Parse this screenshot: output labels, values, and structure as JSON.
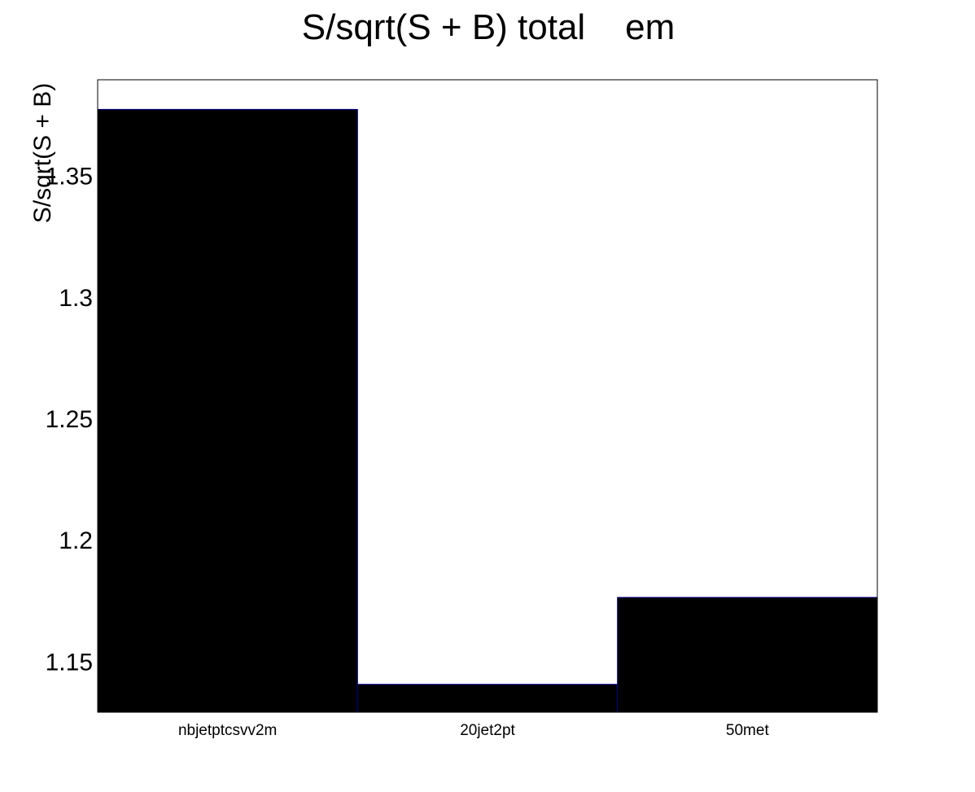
{
  "chart_data": {
    "type": "bar",
    "title": "S/sqrt(S + B) total    em",
    "xlabel": "",
    "ylabel": "S/sqrt(S + B)",
    "categories": [
      "nbjetptcsvv2m",
      "20jet2pt",
      "50met"
    ],
    "values": [
      1.3776,
      1.1408,
      1.1766
    ],
    "ylim": [
      1.1293,
      1.3898
    ],
    "yticks": [
      1.15,
      1.2,
      1.25,
      1.3,
      1.35
    ],
    "ytick_labels": [
      "1.15",
      "1.2",
      "1.25",
      "1.3",
      "1.35"
    ],
    "grid": false,
    "colors": {
      "bar_fill": "#000000",
      "bar_edge": "#00008b",
      "frame": "#000000"
    }
  }
}
